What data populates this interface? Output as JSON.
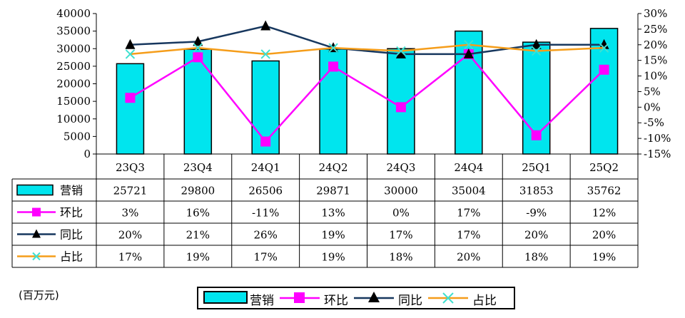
{
  "unit_label": "(百万元)",
  "chart_data": {
    "type": "bar+line",
    "categories": [
      "23Q3",
      "23Q4",
      "24Q1",
      "24Q2",
      "24Q3",
      "24Q4",
      "25Q1",
      "25Q2"
    ],
    "left_axis": {
      "min": 0,
      "max": 40000,
      "step": 5000,
      "ticks": [
        "0",
        "5000",
        "10000",
        "15000",
        "20000",
        "25000",
        "30000",
        "35000",
        "40000"
      ]
    },
    "right_axis": {
      "min": -15,
      "max": 30,
      "step": 5,
      "ticks": [
        "-15%",
        "-10%",
        "-5%",
        "0%",
        "5%",
        "10%",
        "15%",
        "20%",
        "25%",
        "30%"
      ]
    },
    "series": [
      {
        "name": "营销",
        "kind": "bar",
        "axis": "left",
        "color": "#00E5EE",
        "values": [
          25721,
          29800,
          26506,
          29871,
          30000,
          35004,
          31853,
          35762
        ],
        "labels": [
          "25721",
          "29800",
          "26506",
          "29871",
          "30000",
          "35004",
          "31853",
          "35762"
        ]
      },
      {
        "name": "环比",
        "kind": "line",
        "axis": "right",
        "color": "#FF00FF",
        "marker": "square",
        "values": [
          3,
          16,
          -11,
          13,
          0,
          17,
          -9,
          12
        ],
        "labels": [
          "3%",
          "16%",
          "-11%",
          "13%",
          "0%",
          "17%",
          "-9%",
          "12%"
        ]
      },
      {
        "name": "同比",
        "kind": "line",
        "axis": "right",
        "color": "#17375E",
        "marker": "triangle",
        "values": [
          20,
          21,
          26,
          19,
          17,
          17,
          20,
          20
        ],
        "labels": [
          "20%",
          "21%",
          "26%",
          "19%",
          "17%",
          "17%",
          "20%",
          "20%"
        ]
      },
      {
        "name": "占比",
        "kind": "line",
        "axis": "right",
        "color": "#F59D1A",
        "marker": "x",
        "values": [
          17,
          19,
          17,
          19,
          18,
          20,
          18,
          19
        ],
        "labels": [
          "17%",
          "19%",
          "17%",
          "19%",
          "18%",
          "20%",
          "18%",
          "19%"
        ]
      }
    ],
    "legend_position": "bottom"
  }
}
